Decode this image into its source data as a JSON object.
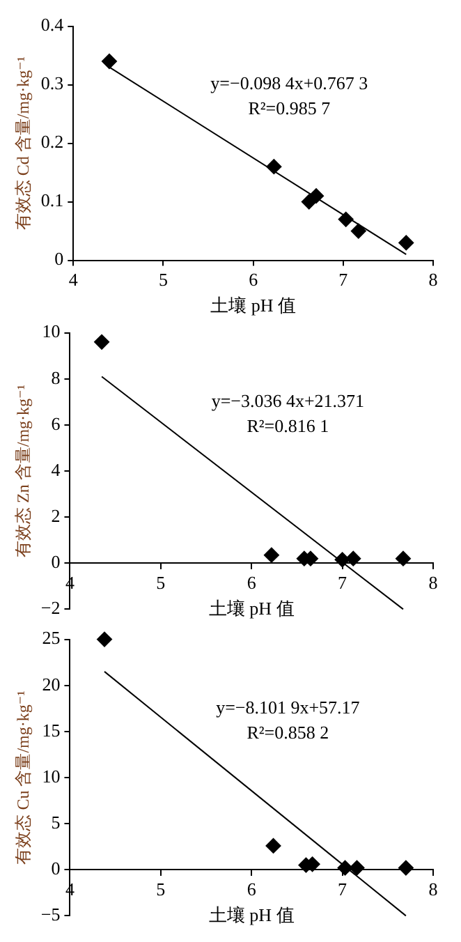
{
  "chart_data": [
    {
      "type": "scatter",
      "xlabel": "土壤 pH 值",
      "ylabel": "有效态 Cd 含量/mg·kg⁻¹",
      "xlim": [
        4,
        8
      ],
      "xticks": [
        4,
        5,
        6,
        7,
        8
      ],
      "ylim": [
        0,
        0.4
      ],
      "yticks": [
        0,
        0.1,
        0.2,
        0.3,
        0.4
      ],
      "grid": false,
      "annotations": [
        "y=−0.098 4x+0.767 3",
        "R²=0.985 7"
      ],
      "series": [
        {
          "type": "scatter",
          "color": "#000000",
          "marker": "diamond",
          "x": [
            4.4,
            6.23,
            6.62,
            6.7,
            7.03,
            7.17,
            7.7
          ],
          "values": [
            0.34,
            0.16,
            0.1,
            0.11,
            0.07,
            0.05,
            0.03
          ]
        },
        {
          "type": "line",
          "color": "#000000",
          "marker": "none",
          "x": [
            4.4,
            7.7
          ],
          "values": [
            0.33,
            0.01
          ]
        }
      ]
    },
    {
      "type": "scatter",
      "xlabel": "土壤 pH 值",
      "ylabel": "有效态 Zn 含量/mg·kg⁻¹",
      "xlim": [
        4,
        8
      ],
      "xticks": [
        4,
        5,
        6,
        7,
        8
      ],
      "ylim": [
        -2,
        10
      ],
      "yticks": [
        {
          "value": -2,
          "label": "−2"
        },
        0,
        2,
        4,
        6,
        8,
        10
      ],
      "grid": false,
      "annotations": [
        "y=−3.036 4x+21.371",
        "R²=0.816 1"
      ],
      "series": [
        {
          "type": "scatter",
          "color": "#000000",
          "marker": "diamond",
          "x": [
            4.35,
            6.22,
            6.58,
            6.65,
            7.0,
            7.12,
            7.67
          ],
          "values": [
            9.6,
            0.35,
            0.2,
            0.2,
            0.15,
            0.2,
            0.2
          ]
        },
        {
          "type": "line",
          "color": "#000000",
          "marker": "none",
          "x": [
            4.35,
            7.67
          ],
          "values": [
            8.1,
            -2.0
          ]
        }
      ]
    },
    {
      "type": "scatter",
      "xlabel": "土壤 pH 值",
      "ylabel": "有效态 Cu 含量/mg·kg⁻¹",
      "xlim": [
        4,
        8
      ],
      "xticks": [
        4,
        5,
        6,
        7,
        8
      ],
      "ylim": [
        -5,
        25
      ],
      "yticks": [
        {
          "value": -5,
          "label": "−5"
        },
        0,
        5,
        10,
        15,
        20,
        25
      ],
      "grid": false,
      "annotations": [
        "y=−8.101 9x+57.17",
        "R²=0.858 2"
      ],
      "series": [
        {
          "type": "scatter",
          "color": "#000000",
          "marker": "diamond",
          "x": [
            4.38,
            6.24,
            6.6,
            6.67,
            7.03,
            7.16,
            7.7
          ],
          "values": [
            25,
            2.6,
            0.5,
            0.6,
            0.2,
            0.2,
            0.2
          ]
        },
        {
          "type": "line",
          "color": "#000000",
          "marker": "none",
          "x": [
            4.38,
            7.7
          ],
          "values": [
            21.5,
            -5.0
          ]
        }
      ]
    }
  ]
}
